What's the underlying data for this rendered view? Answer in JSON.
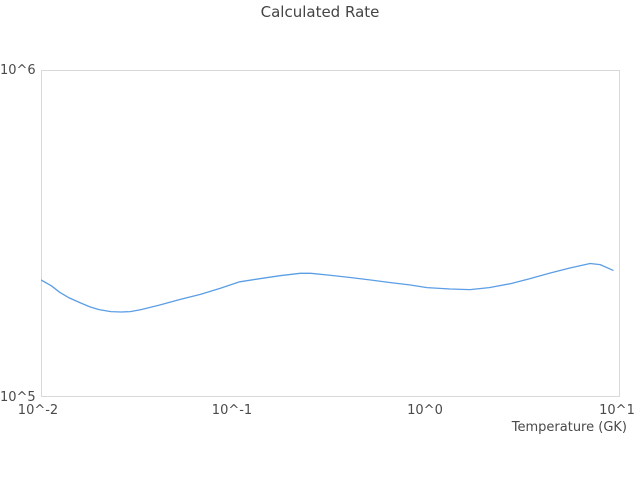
{
  "chart_data": {
    "type": "line",
    "title": "Calculated Rate",
    "xlabel": "Temperature (GK)",
    "ylabel": "",
    "x_scale": "log",
    "y_scale": "log",
    "xlim": [
      0.01,
      10
    ],
    "ylim": [
      100000,
      1000000
    ],
    "x_tick_labels": [
      "10^-2",
      "10^-1",
      "10^0",
      "10^1"
    ],
    "y_tick_labels": [
      "10^5",
      "10^6"
    ],
    "grid": false,
    "legend": false,
    "line_color": "#5b9ee5",
    "frame_color": "#d9d9d9",
    "text_color": "#4a4a4a",
    "series": [
      {
        "name": "calculated-rate",
        "x": [
          0.01,
          0.0113,
          0.0125,
          0.014,
          0.016,
          0.018,
          0.02,
          0.023,
          0.026,
          0.029,
          0.033,
          0.041,
          0.053,
          0.067,
          0.085,
          0.107,
          0.136,
          0.173,
          0.22,
          0.25,
          0.31,
          0.4,
          0.51,
          0.64,
          0.82,
          1.0,
          1.32,
          1.67,
          2.1,
          2.7,
          3.4,
          4.3,
          5.5,
          7.0,
          7.9,
          9.2
        ],
        "y": [
          228000,
          219000,
          209000,
          201000,
          194000,
          188500,
          185000,
          182500,
          182000,
          182500,
          185000,
          191000,
          199000,
          206000,
          215000,
          225000,
          230000,
          235000,
          239000,
          239000,
          236000,
          232000,
          228000,
          224000,
          220000,
          216000,
          214000,
          213000,
          216000,
          222000,
          230000,
          239000,
          248000,
          256000,
          254000,
          244000
        ]
      }
    ]
  }
}
